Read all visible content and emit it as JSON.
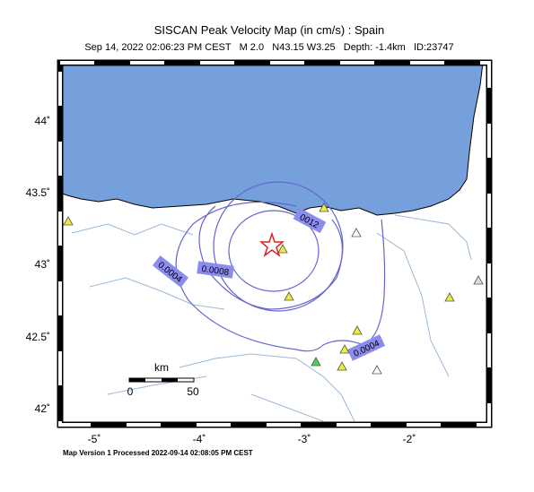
{
  "header": {
    "title": "SISCAN Peak Velocity Map (in cm/s) : Spain",
    "subtitle": "Sep 14, 2022 02:06:23 PM CEST   M 2.0   N43.15 W3.25   Depth: -1.4km   ID:23747"
  },
  "axes": {
    "lat_labels": [
      "44˚",
      "43.5˚",
      "43˚",
      "42.5˚",
      "42˚"
    ],
    "lon_labels": [
      "-5˚",
      "-4˚",
      "-3˚",
      "-2˚"
    ]
  },
  "contour_labels": [
    "0012",
    "0.0004",
    "0.0008",
    "0.0004"
  ],
  "scale": {
    "unit": "km",
    "start": "0",
    "end": "50"
  },
  "footer": "Map Version 1 Processed 2022-09-14 02:08:05 PM CEST"
}
